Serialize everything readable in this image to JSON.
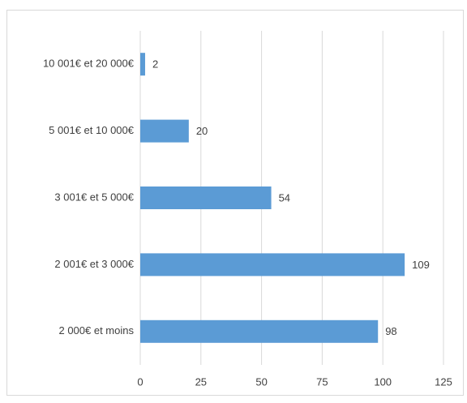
{
  "chart_data": {
    "type": "bar",
    "categories": [
      "10 001€ et 20 000€",
      "5 001€ et 10 000€",
      "3 001€ et 5 000€",
      "2 001€ et 3 000€",
      "2 000€ et moins"
    ],
    "values": [
      2,
      20,
      54,
      109,
      98
    ],
    "color": "#5b9bd5",
    "xlim": [
      0,
      125
    ],
    "xticks": [
      0,
      25,
      50,
      75,
      100,
      125
    ],
    "grid": true
  }
}
